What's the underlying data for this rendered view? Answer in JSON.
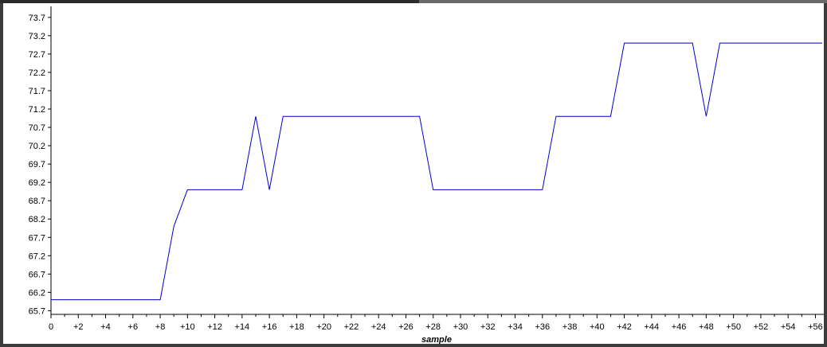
{
  "chart_data": {
    "type": "line",
    "xlabel": "sample",
    "ylabel": "",
    "title": "",
    "xlim": [
      0,
      56.5
    ],
    "ylim": [
      65.6,
      74.0
    ],
    "y_ticks": [
      "65.7",
      "66.2",
      "66.7",
      "67.2",
      "67.7",
      "68.2",
      "68.7",
      "69.2",
      "69.7",
      "70.2",
      "70.7",
      "71.2",
      "71.7",
      "72.2",
      "72.7",
      "73.2",
      "73.7"
    ],
    "x_ticks": [
      "0",
      "+2",
      "+4",
      "+6",
      "+8",
      "+10",
      "+12",
      "+14",
      "+16",
      "+18",
      "+20",
      "+22",
      "+24",
      "+26",
      "+28",
      "+30",
      "+32",
      "+34",
      "+36",
      "+38",
      "+40",
      "+42",
      "+44",
      "+46",
      "+48",
      "+50",
      "+52",
      "+54",
      "+56"
    ],
    "series": [
      {
        "color": "#0000cc",
        "x": [
          0,
          1,
          2,
          3,
          4,
          5,
          6,
          7,
          8,
          9,
          10,
          11,
          12,
          13,
          14,
          15,
          16,
          17,
          18,
          19,
          20,
          21,
          22,
          23,
          24,
          25,
          26,
          27,
          28,
          29,
          30,
          31,
          32,
          33,
          34,
          35,
          36,
          37,
          38,
          39,
          40,
          41,
          42,
          43,
          44,
          45,
          46,
          47,
          48,
          49,
          50,
          51,
          52,
          53,
          54,
          55,
          56,
          56.5
        ],
        "values": [
          66.0,
          66.0,
          66.0,
          66.0,
          66.0,
          66.0,
          66.0,
          66.0,
          66.0,
          68.0,
          69.0,
          69.0,
          69.0,
          69.0,
          69.0,
          71.0,
          69.0,
          71.0,
          71.0,
          71.0,
          71.0,
          71.0,
          71.0,
          71.0,
          71.0,
          71.0,
          71.0,
          71.0,
          69.0,
          69.0,
          69.0,
          69.0,
          69.0,
          69.0,
          69.0,
          69.0,
          69.0,
          71.0,
          71.0,
          71.0,
          71.0,
          71.0,
          73.0,
          73.0,
          73.0,
          73.0,
          73.0,
          73.0,
          71.0,
          73.0,
          73.0,
          73.0,
          73.0,
          73.0,
          73.0,
          73.0,
          73.0,
          73.0
        ]
      }
    ],
    "grid": false,
    "legend": "none"
  }
}
